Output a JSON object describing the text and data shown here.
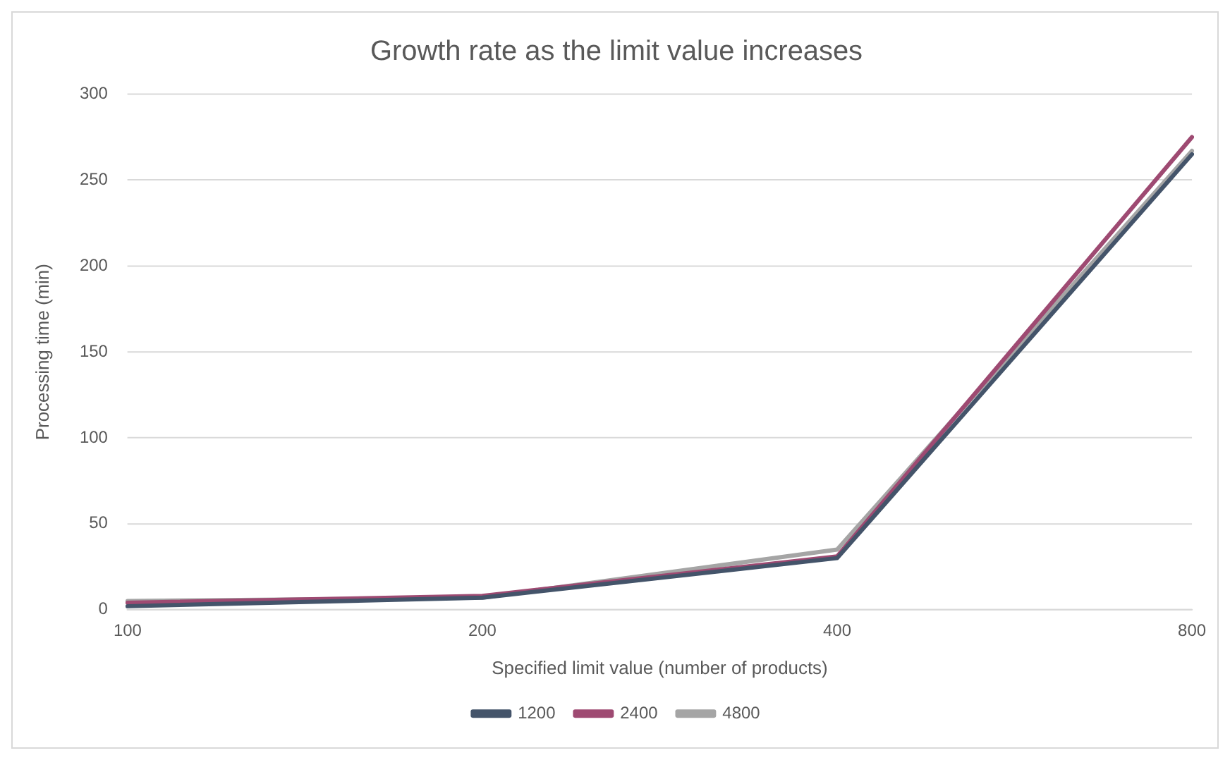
{
  "chart_data": {
    "type": "line",
    "title": "Growth rate as the limit value increases",
    "xlabel": "Specified limit value (number of products)",
    "ylabel": "Processing time (min)",
    "categories": [
      "100",
      "200",
      "400",
      "800"
    ],
    "series": [
      {
        "name": "1200",
        "color": "#44546a",
        "values": [
          2,
          7,
          30,
          265
        ]
      },
      {
        "name": "2400",
        "color": "#9e4a72",
        "values": [
          4,
          8,
          31,
          275
        ]
      },
      {
        "name": "4800",
        "color": "#a5a5a5",
        "values": [
          5,
          7,
          35,
          267
        ]
      }
    ],
    "ylim": [
      0,
      300
    ],
    "yticks": [
      0,
      50,
      100,
      150,
      200,
      250,
      300
    ],
    "grid": "y",
    "legend": "bottom",
    "marker": "none",
    "line_style": "solid"
  }
}
